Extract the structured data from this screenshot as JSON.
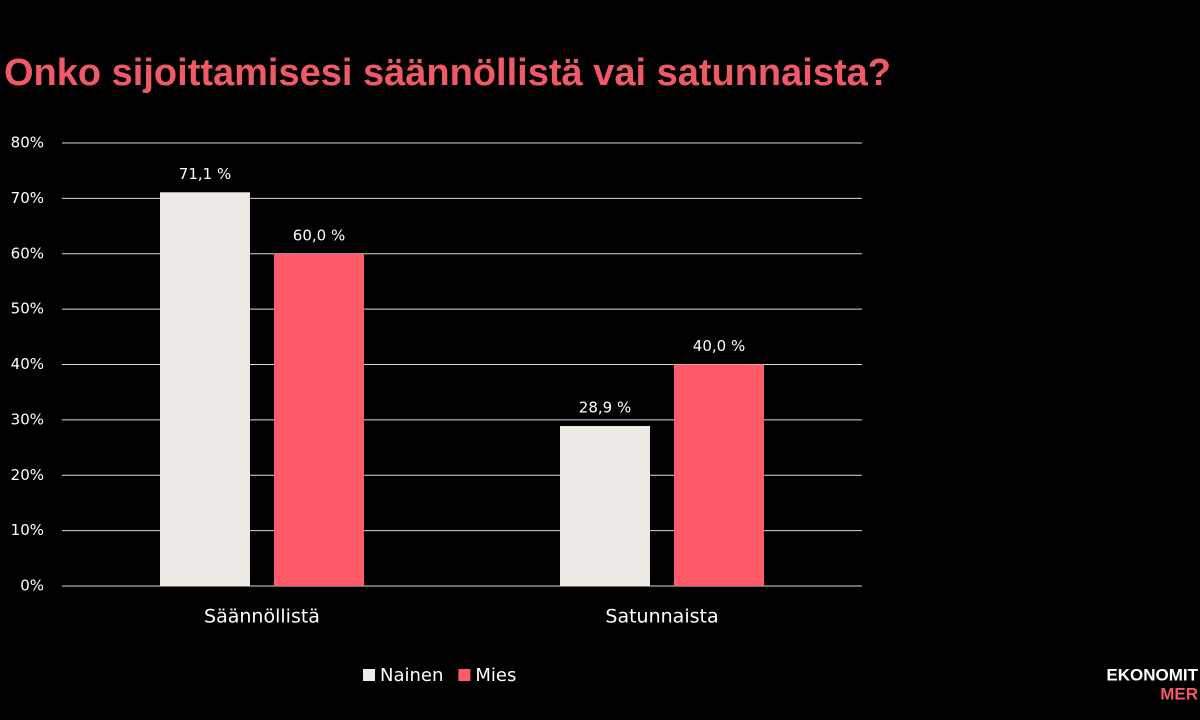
{
  "chart_data": {
    "type": "bar",
    "title": "Onko sijoittamisesi säännöllistä vai satunnaista?",
    "categories": [
      "Säännöllistä",
      "Satunnaista"
    ],
    "series": [
      {
        "name": "Nainen",
        "color": "#eeebe6",
        "values": [
          71.1,
          28.9
        ],
        "value_labels": [
          "71,1 %",
          "28,9 %"
        ]
      },
      {
        "name": "Mies",
        "color": "#ff5a68",
        "values": [
          60.0,
          40.0
        ],
        "value_labels": [
          "60,0 %",
          "40,0 %"
        ]
      }
    ],
    "ylim": [
      0,
      80
    ],
    "yticks": [
      {
        "value": 0,
        "label": "0%"
      },
      {
        "value": 10,
        "label": "10%"
      },
      {
        "value": 20,
        "label": "20%"
      },
      {
        "value": 30,
        "label": "30%"
      },
      {
        "value": 40,
        "label": "40%"
      },
      {
        "value": 50,
        "label": "50%"
      },
      {
        "value": 60,
        "label": "60%"
      },
      {
        "value": 70,
        "label": "70%"
      },
      {
        "value": 80,
        "label": "80%"
      }
    ],
    "grid": true,
    "legend": "bottom"
  },
  "logo": [
    "EKONOMIT",
    "MER"
  ]
}
